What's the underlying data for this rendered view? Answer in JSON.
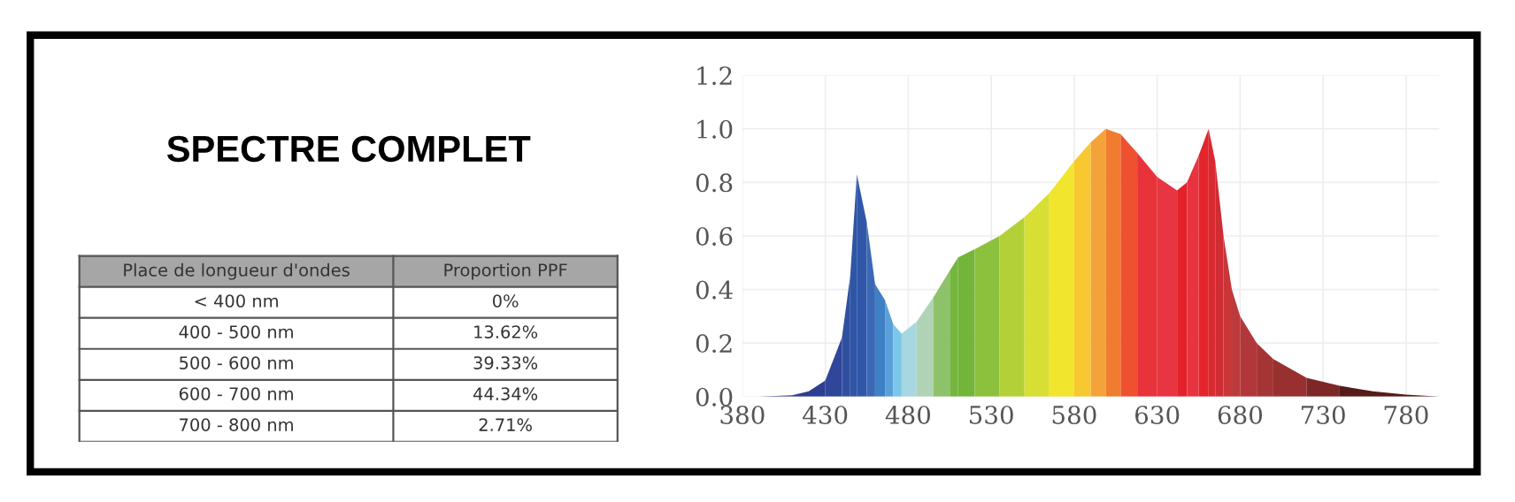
{
  "chart_data": [
    {
      "type": "other",
      "title": "SPECTRE COMPLET",
      "annotations": [
        "Place de longueur d'ondes",
        "Proportion PPF",
        "< 400 nm",
        "0%",
        "400 - 500 nm",
        "13.62%",
        "500 - 600 nm",
        "39.33%",
        "600 - 700 nm",
        "44.34%",
        "700 - 800 nm",
        "2.71%"
      ]
    },
    {
      "type": "area",
      "xlim": [
        380,
        800
      ],
      "ylim": [
        0,
        1.2
      ],
      "xticks": [
        380,
        430,
        480,
        530,
        580,
        630,
        680,
        730,
        780
      ],
      "yticks": [
        {
          "value": 0,
          "label": "0.0"
        },
        {
          "value": 0.2,
          "label": "0.2"
        },
        {
          "value": 0.4,
          "label": "0.4"
        },
        {
          "value": 0.6,
          "label": "0.6"
        },
        {
          "value": 0.8,
          "label": "0.8"
        },
        {
          "value": 1.0,
          "label": "1.0"
        },
        {
          "value": 1.2,
          "label": "1.2"
        }
      ],
      "grid": true,
      "series": [
        {
          "color": "#2d3f92",
          "x": [
            390,
            410,
            420,
            430
          ],
          "values": [
            0,
            0.005,
            0.02,
            0.06
          ]
        },
        {
          "color": "#2f4699",
          "x": [
            430,
            440
          ],
          "values": [
            0.06,
            0.22
          ]
        },
        {
          "color": "#30509f",
          "x": [
            440,
            445
          ],
          "values": [
            0.22,
            0.45
          ]
        },
        {
          "color": "#2f55a6",
          "x": [
            445,
            449
          ],
          "values": [
            0.45,
            0.83
          ]
        },
        {
          "color": "#3157a8",
          "x": [
            449,
            455
          ],
          "values": [
            0.83,
            0.65
          ]
        },
        {
          "color": "#3a68b5",
          "x": [
            455,
            460
          ],
          "values": [
            0.65,
            0.42
          ]
        },
        {
          "color": "#3f7fc4",
          "x": [
            460,
            466
          ],
          "values": [
            0.42,
            0.36
          ]
        },
        {
          "color": "#5aa0d8",
          "x": [
            466,
            471
          ],
          "values": [
            0.36,
            0.27
          ]
        },
        {
          "color": "#7cc6ea",
          "x": [
            471,
            476
          ],
          "values": [
            0.27,
            0.235
          ]
        },
        {
          "color": "#a7d7e0",
          "x": [
            476,
            485
          ],
          "values": [
            0.235,
            0.28
          ]
        },
        {
          "color": "#b0d3b5",
          "x": [
            485,
            495
          ],
          "values": [
            0.28,
            0.37
          ]
        },
        {
          "color": "#8ec26a",
          "x": [
            495,
            505
          ],
          "values": [
            0.37,
            0.47
          ]
        },
        {
          "color": "#74b63f",
          "x": [
            505,
            510
          ],
          "values": [
            0.47,
            0.52
          ]
        },
        {
          "color": "#72b53a",
          "x": [
            510,
            520
          ],
          "values": [
            0.52,
            0.55
          ]
        },
        {
          "color": "#8cc13d",
          "x": [
            520,
            535
          ],
          "values": [
            0.55,
            0.6
          ]
        },
        {
          "color": "#b3d038",
          "x": [
            535,
            550
          ],
          "values": [
            0.6,
            0.67
          ]
        },
        {
          "color": "#d8df34",
          "x": [
            550,
            565
          ],
          "values": [
            0.67,
            0.76
          ]
        },
        {
          "color": "#f2e52e",
          "x": [
            565,
            580
          ],
          "values": [
            0.76,
            0.88
          ]
        },
        {
          "color": "#f8c830",
          "x": [
            580,
            590
          ],
          "values": [
            0.88,
            0.95
          ]
        },
        {
          "color": "#f4a23a",
          "x": [
            590,
            599
          ],
          "values": [
            0.95,
            1.0
          ]
        },
        {
          "color": "#f07c30",
          "x": [
            599,
            608
          ],
          "values": [
            1.0,
            0.98
          ]
        },
        {
          "color": "#ee5030",
          "x": [
            608,
            618
          ],
          "values": [
            0.98,
            0.91
          ]
        },
        {
          "color": "#e8333a",
          "x": [
            618,
            630
          ],
          "values": [
            0.91,
            0.82
          ]
        },
        {
          "color": "#e73541",
          "x": [
            630,
            642
          ],
          "values": [
            0.82,
            0.77
          ]
        },
        {
          "color": "#e2222a",
          "x": [
            642,
            648
          ],
          "values": [
            0.77,
            0.8
          ]
        },
        {
          "color": "#e83340",
          "x": [
            648,
            655
          ],
          "values": [
            0.8,
            0.9
          ]
        },
        {
          "color": "#e4252e",
          "x": [
            655,
            661
          ],
          "values": [
            0.9,
            1.0
          ]
        },
        {
          "color": "#d92a30",
          "x": [
            661,
            665
          ],
          "values": [
            1.0,
            0.88
          ]
        },
        {
          "color": "#d02c33",
          "x": [
            665,
            670
          ],
          "values": [
            0.88,
            0.6
          ]
        },
        {
          "color": "#c8363a",
          "x": [
            670,
            675
          ],
          "values": [
            0.6,
            0.4
          ]
        },
        {
          "color": "#bd3a3c",
          "x": [
            675,
            680
          ],
          "values": [
            0.4,
            0.3
          ]
        },
        {
          "color": "#b2373a",
          "x": [
            680,
            690
          ],
          "values": [
            0.3,
            0.2
          ]
        },
        {
          "color": "#a53535",
          "x": [
            690,
            700
          ],
          "values": [
            0.2,
            0.14
          ]
        },
        {
          "color": "#983030",
          "x": [
            700,
            720
          ],
          "values": [
            0.14,
            0.07
          ]
        },
        {
          "color": "#7e2727",
          "x": [
            720,
            740
          ],
          "values": [
            0.07,
            0.04
          ]
        },
        {
          "color": "#551b1b",
          "x": [
            740,
            760,
            780,
            800
          ],
          "values": [
            0.04,
            0.02,
            0.007,
            0
          ]
        }
      ]
    }
  ]
}
